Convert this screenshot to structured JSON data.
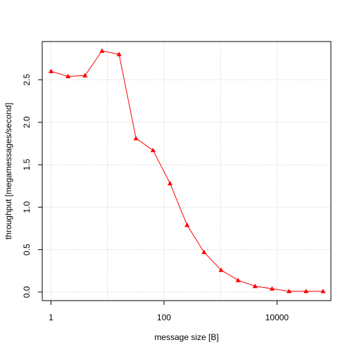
{
  "chart_data": {
    "type": "line",
    "title": "",
    "xlabel": "message size [B]",
    "ylabel": "throughput [megamessages/second]",
    "x_scale": "log10",
    "xlim": [
      0.7,
      90000
    ],
    "ylim": [
      -0.1,
      2.95
    ],
    "x_ticks": [
      1,
      100,
      10000
    ],
    "x_tick_labels": [
      "1",
      "100",
      "10000"
    ],
    "y_ticks": [
      0.0,
      0.5,
      1.0,
      1.5,
      2.0,
      2.5
    ],
    "y_tick_labels": [
      "0.0",
      "0.5",
      "1.0",
      "1.5",
      "2.0",
      "2.5"
    ],
    "grid": true,
    "marker": "triangle",
    "series_color": "#ff0000",
    "series": [
      {
        "x": [
          1,
          2,
          4,
          8,
          16,
          32,
          64,
          128,
          256,
          512,
          1024,
          2048,
          4096,
          8192,
          16384,
          32768,
          65536
        ],
        "y": [
          2.6,
          2.54,
          2.55,
          2.84,
          2.8,
          1.81,
          1.67,
          1.28,
          0.79,
          0.47,
          0.26,
          0.14,
          0.07,
          0.04,
          0.01,
          0.01,
          0.01
        ]
      }
    ]
  }
}
